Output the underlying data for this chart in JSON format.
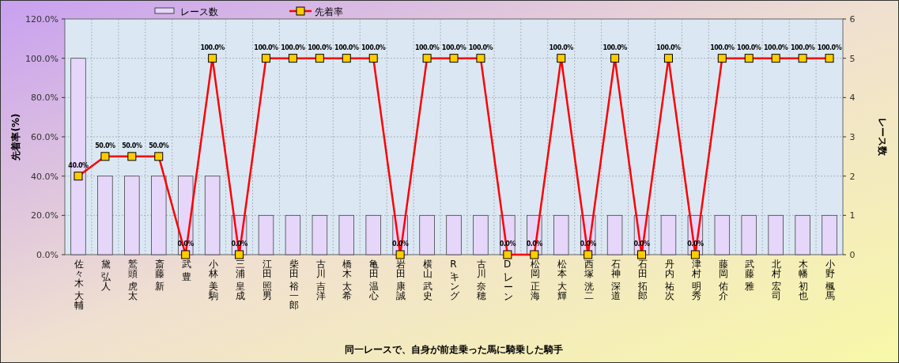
{
  "chart_data": {
    "type": "bar",
    "xlabel": "同一レースで、自身が前走乗った馬に騎乗した騎手",
    "ylabel": "先着率(%)",
    "y2label": "レース数",
    "categories": [
      "佐々木 大輔",
      "黛 弘人",
      "鷲頭 虎太",
      "斎藤 新",
      "武 豊",
      "小林 美駒",
      "三浦 皇成",
      "江田 照男",
      "柴田 裕一郎",
      "古川 吉洋",
      "橋木 太希",
      "亀田 温心",
      "岩田 康誠",
      "横山 武史",
      "R. キング",
      "古川 奈穂",
      "D. レーン",
      "松岡 正海",
      "松本 大輝",
      "西塚 洸二",
      "石神 深道",
      "石田 拓郎",
      "丹内 祐次",
      "津村 明秀",
      "藤岡 佑介",
      "武藤 雅",
      "北村 宏司",
      "木幡 初也",
      "小野 楓馬"
    ],
    "series": [
      {
        "name": "レース数",
        "type": "bar",
        "axis": "y2",
        "color": "#e6d6fa",
        "values": [
          5,
          2,
          2,
          2,
          2,
          2,
          1,
          1,
          1,
          1,
          1,
          1,
          1,
          1,
          1,
          1,
          1,
          1,
          1,
          1,
          1,
          1,
          1,
          1,
          1,
          1,
          1,
          1,
          1
        ]
      },
      {
        "name": "先着率",
        "type": "line",
        "color": "#ff0000",
        "values": [
          40,
          50,
          50,
          50,
          0,
          100,
          0,
          100,
          100,
          100,
          100,
          100,
          0,
          100,
          100,
          100,
          0,
          0,
          100,
          0,
          100,
          0,
          100,
          0,
          100,
          100,
          100,
          100,
          100
        ],
        "value_labels": [
          "40.0%",
          "50.0%",
          "50.0%",
          "50.0%",
          "0.0%",
          "100.0%",
          "0.0%",
          "100.0%",
          "100.0%",
          "100.0%",
          "100.0%",
          "100.0%",
          "0.0%",
          "100.0%",
          "100.0%",
          "100.0%",
          "0.0%",
          "0.0%",
          "100.0%",
          "0.0%",
          "100.0%",
          "0.0%",
          "100.0%",
          "0.0%",
          "100.0%",
          "100.0%",
          "100.0%",
          "100.0%",
          "100.0%"
        ]
      }
    ],
    "ylim": [
      0,
      120
    ],
    "yticks": [
      {
        "value": 0,
        "label": "0.0%"
      },
      {
        "value": 20,
        "label": "20.0%"
      },
      {
        "value": 40,
        "label": "40.0%"
      },
      {
        "value": 60,
        "label": "60.0%"
      },
      {
        "value": 80,
        "label": "80.0%"
      },
      {
        "value": 100,
        "label": "100.0%"
      },
      {
        "value": 120,
        "label": "120.0%"
      }
    ],
    "y2lim": [
      0,
      6
    ],
    "y2ticks": [
      0,
      1,
      2,
      3,
      4,
      5,
      6
    ],
    "grid": true,
    "legend": "top",
    "marker": "square",
    "line_style": "solid"
  }
}
